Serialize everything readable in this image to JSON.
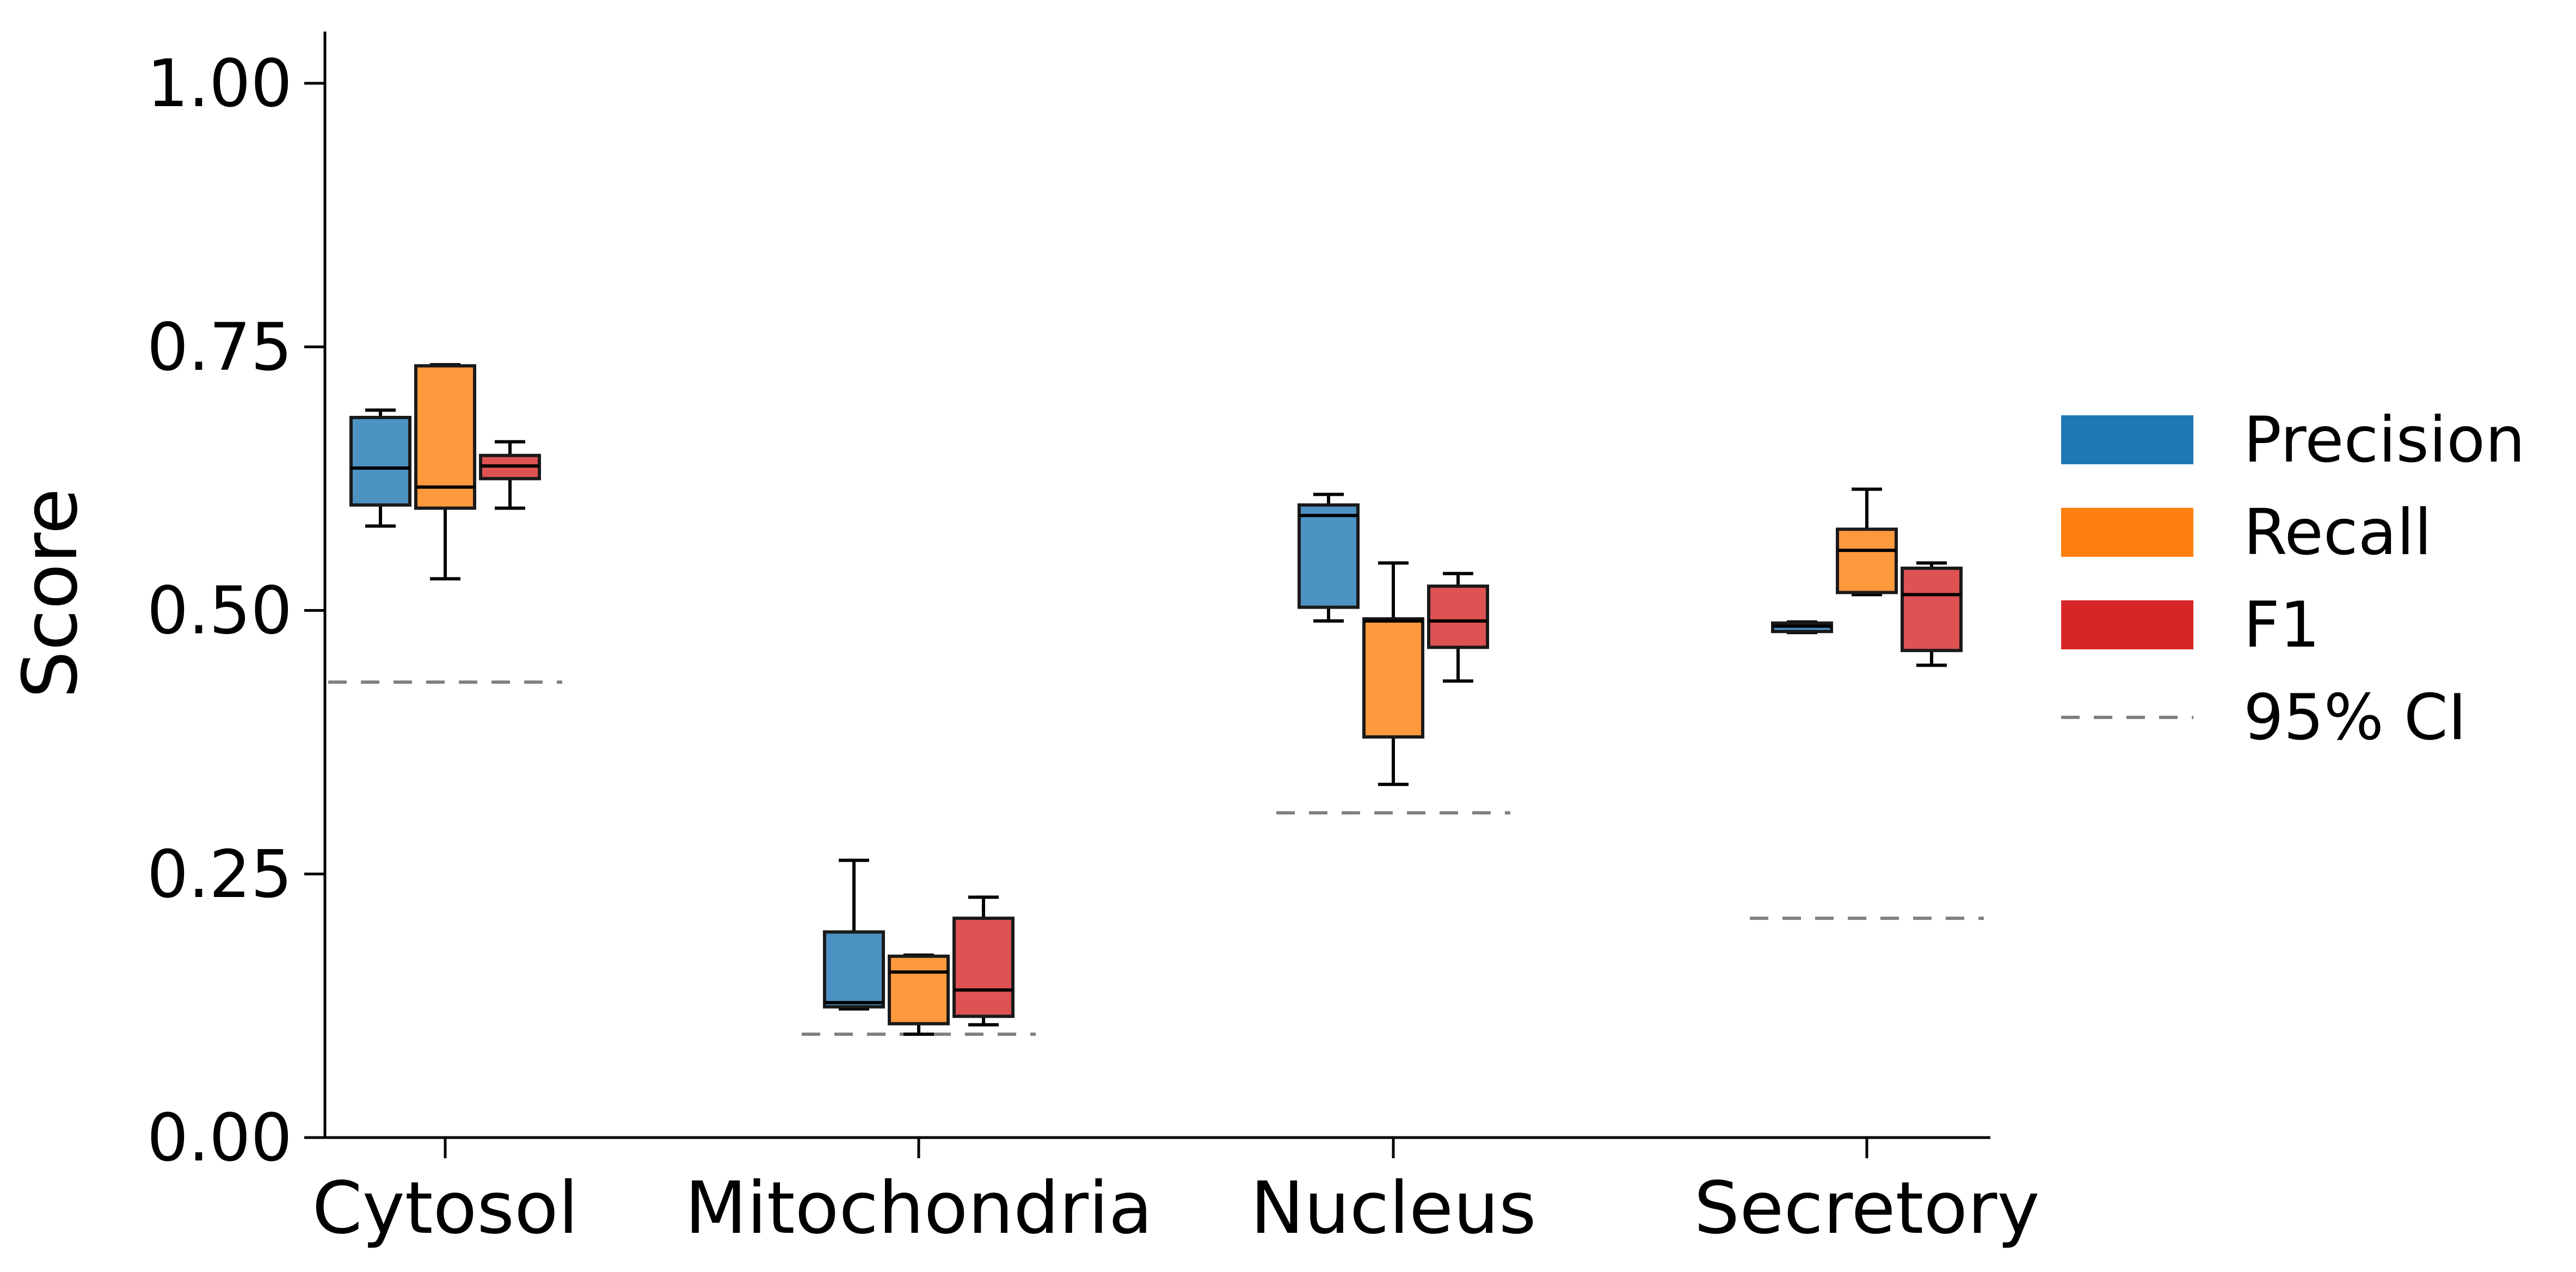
{
  "chart_data": {
    "type": "box",
    "ylabel": "Score",
    "ylim": [
      0,
      1.05
    ],
    "yticks": [
      "0.00",
      "0.25",
      "0.50",
      "0.75",
      "1.00"
    ],
    "categories": [
      "Cytosol",
      "Mitochondria",
      "Nucleus",
      "Secretory"
    ],
    "legend_position": "right",
    "series": [
      {
        "name": "Precision",
        "color": "#1f77b4",
        "boxes": [
          {
            "whisker_low": 0.58,
            "q1": 0.6,
            "median": 0.635,
            "q3": 0.683,
            "whisker_high": 0.69
          },
          {
            "whisker_low": 0.122,
            "q1": 0.124,
            "median": 0.128,
            "q3": 0.195,
            "whisker_high": 0.263
          },
          {
            "whisker_low": 0.49,
            "q1": 0.503,
            "median": 0.59,
            "q3": 0.6,
            "whisker_high": 0.61
          },
          {
            "whisker_low": 0.479,
            "q1": 0.48,
            "median": 0.485,
            "q3": 0.488,
            "whisker_high": 0.489
          }
        ]
      },
      {
        "name": "Recall",
        "color": "#ff7f0e",
        "boxes": [
          {
            "whisker_low": 0.53,
            "q1": 0.597,
            "median": 0.617,
            "q3": 0.732,
            "whisker_high": 0.733
          },
          {
            "whisker_low": 0.098,
            "q1": 0.108,
            "median": 0.157,
            "q3": 0.172,
            "whisker_high": 0.173
          },
          {
            "whisker_low": 0.335,
            "q1": 0.38,
            "median": 0.49,
            "q3": 0.492,
            "whisker_high": 0.545
          },
          {
            "whisker_low": 0.515,
            "q1": 0.517,
            "median": 0.557,
            "q3": 0.577,
            "whisker_high": 0.615
          }
        ]
      },
      {
        "name": "F1",
        "color": "#d62728",
        "boxes": [
          {
            "whisker_low": 0.597,
            "q1": 0.625,
            "median": 0.637,
            "q3": 0.647,
            "whisker_high": 0.66
          },
          {
            "whisker_low": 0.107,
            "q1": 0.115,
            "median": 0.14,
            "q3": 0.208,
            "whisker_high": 0.228
          },
          {
            "whisker_low": 0.433,
            "q1": 0.465,
            "median": 0.49,
            "q3": 0.523,
            "whisker_high": 0.535
          },
          {
            "whisker_low": 0.448,
            "q1": 0.462,
            "median": 0.515,
            "q3": 0.54,
            "whisker_high": 0.545
          }
        ]
      }
    ],
    "reference": {
      "name": "95% CI",
      "color": "#808080",
      "style": "dashed",
      "values": [
        0.432,
        0.098,
        0.308,
        0.208
      ]
    }
  }
}
